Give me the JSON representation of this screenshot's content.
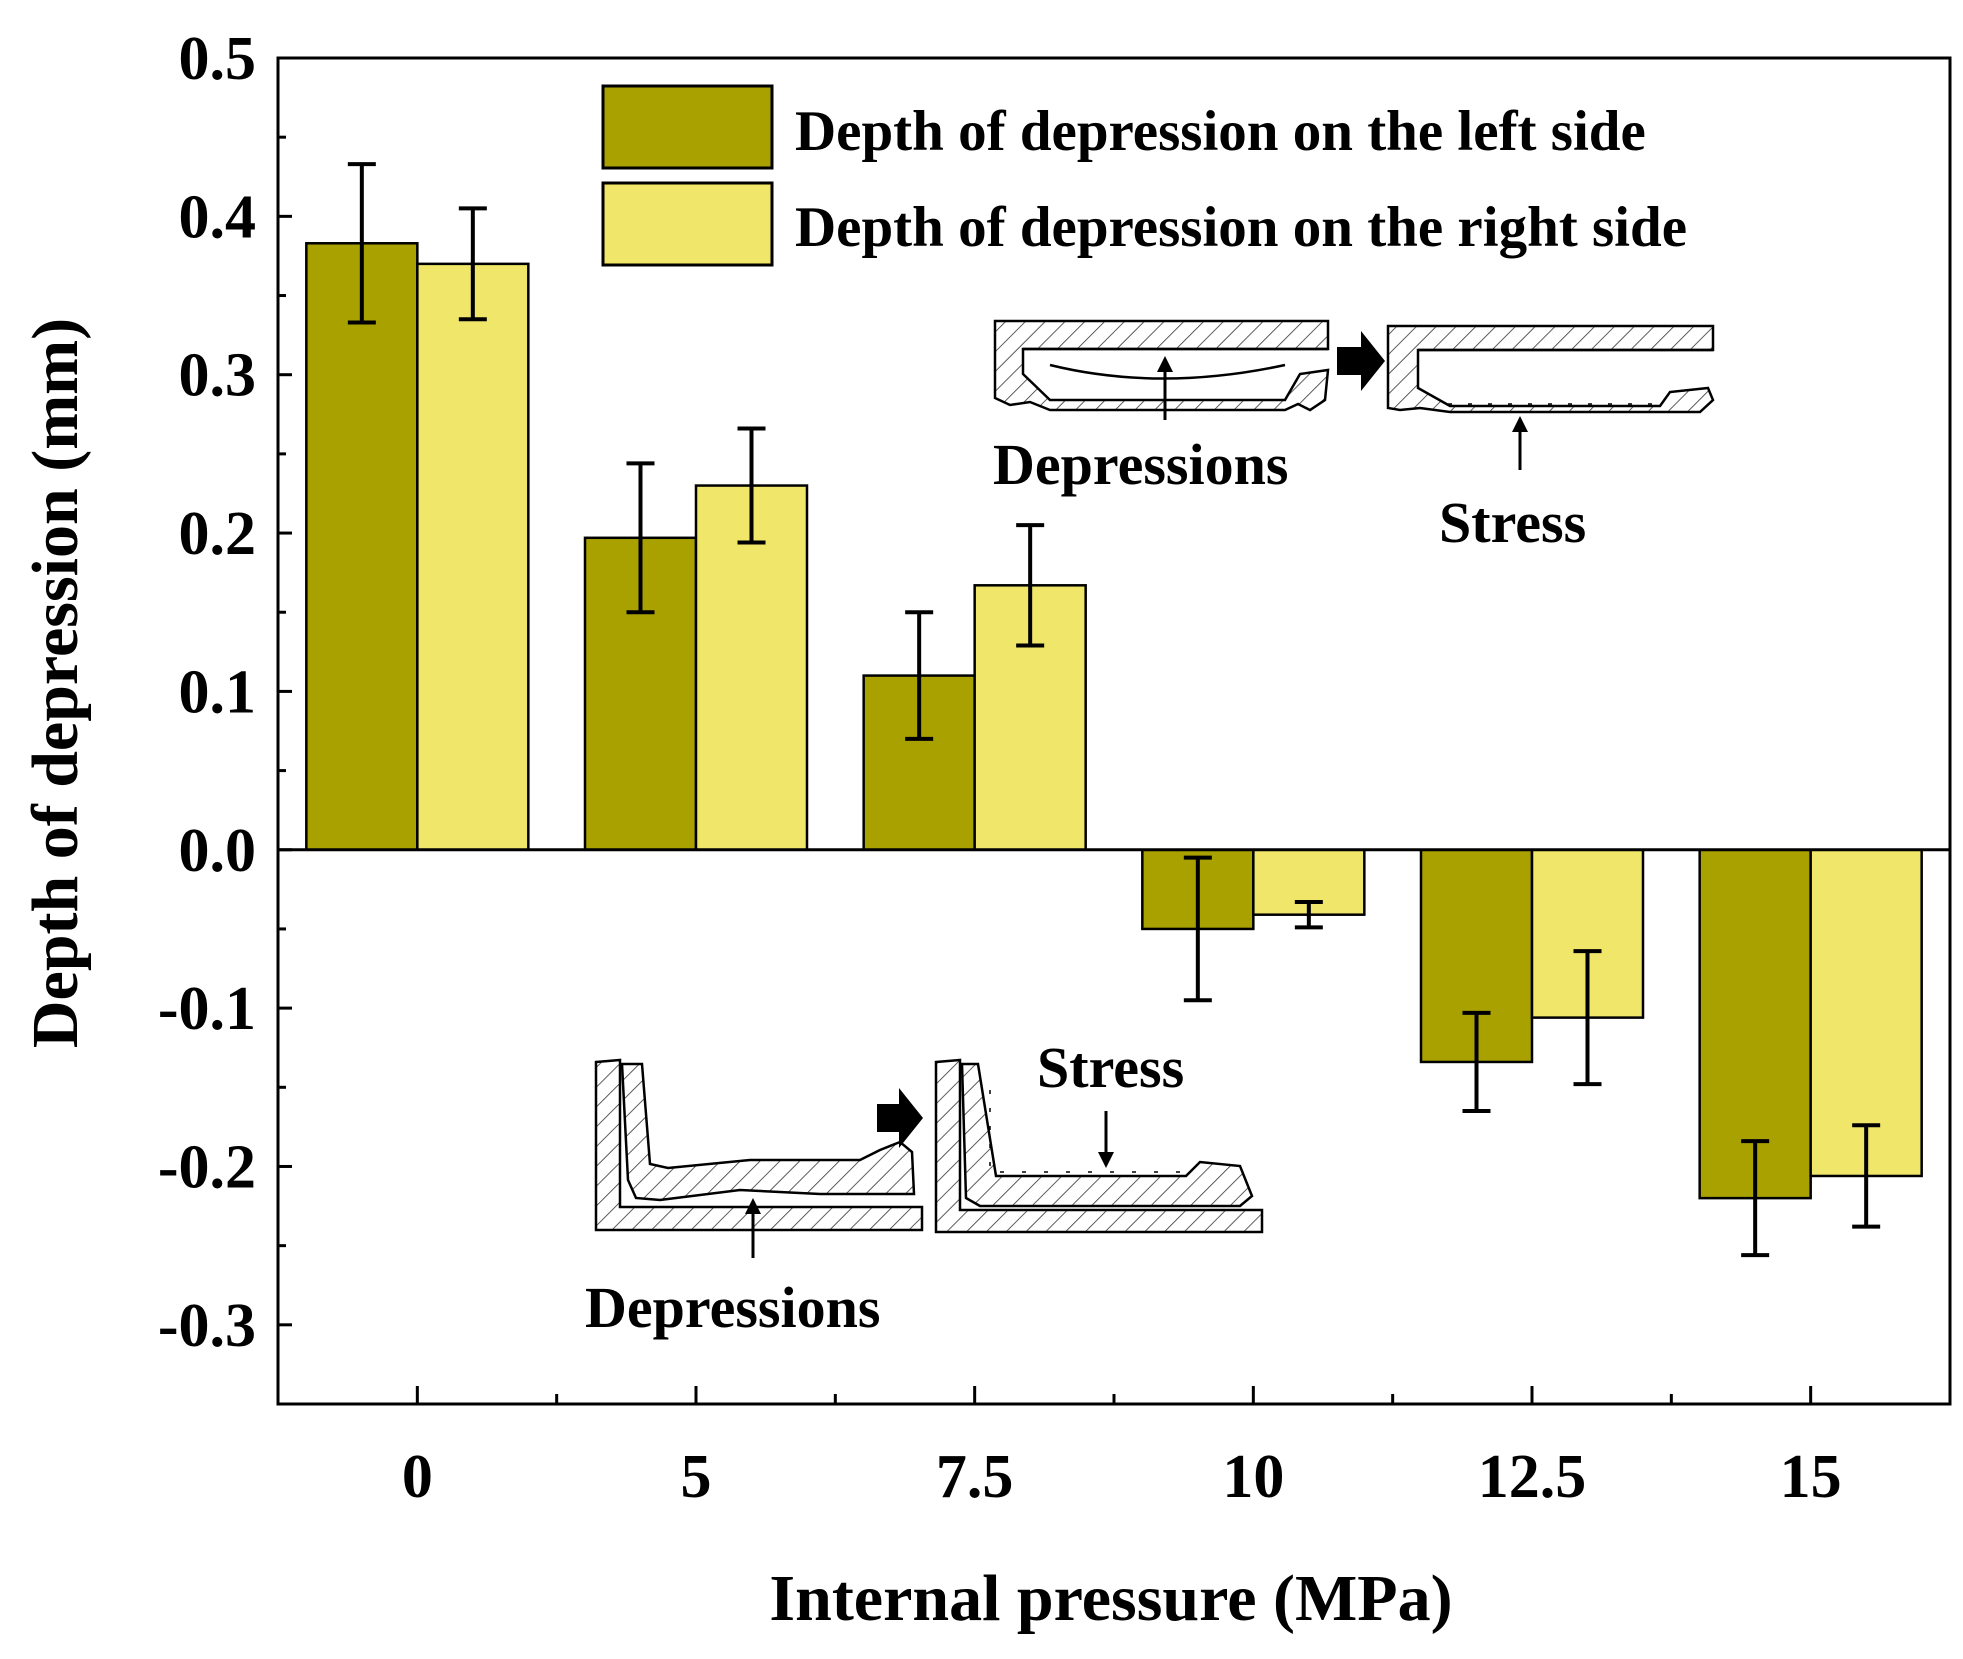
{
  "chart_data": {
    "type": "bar",
    "title": "",
    "xlabel": "Internal pressure (MPa)",
    "ylabel": "Depth of depression (mm)",
    "categories": [
      "0",
      "5",
      "7.5",
      "10",
      "12.5",
      "15"
    ],
    "ylim": [
      -0.35,
      0.5
    ],
    "yticks": [
      "0.5",
      "0.4",
      "0.3",
      "0.2",
      "0.1",
      "0.0",
      "-0.1",
      "-0.2",
      "-0.3"
    ],
    "grid": false,
    "legend_position": "top-right",
    "series": [
      {
        "name": "Depth of depression on the left side",
        "color": "#A9A100",
        "values": [
          0.383,
          0.197,
          0.11,
          -0.05,
          -0.134,
          -0.22
        ],
        "errors": [
          0.05,
          0.047,
          0.04,
          0.045,
          0.031,
          0.036
        ]
      },
      {
        "name": "Depth of depression on the right side",
        "color": "#EFE66A",
        "values": [
          0.37,
          0.23,
          0.167,
          -0.041,
          -0.106,
          -0.206
        ],
        "errors": [
          0.035,
          0.036,
          0.038,
          0.008,
          0.042,
          0.032
        ]
      }
    ],
    "annotations": [
      {
        "id": "top-inset-depressions",
        "text": "Depressions"
      },
      {
        "id": "top-inset-stress",
        "text": "Stress"
      },
      {
        "id": "bottom-inset-stress",
        "text": "Stress"
      },
      {
        "id": "bottom-inset-depressions",
        "text": "Depressions"
      }
    ]
  }
}
